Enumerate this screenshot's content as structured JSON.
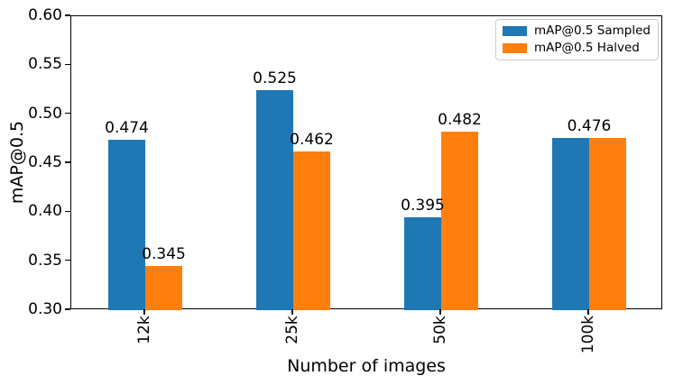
{
  "figure": {
    "background": "#ffffff",
    "spine_color": "#000000",
    "text_color": "#000000",
    "legend_border_color": "#cccccc"
  },
  "chart_data": {
    "type": "bar",
    "title": "",
    "xlabel": "Number of images",
    "ylabel": "mAP@0.5",
    "ylim": [
      0.3,
      0.6
    ],
    "yticks": [
      0.3,
      0.35,
      0.4,
      0.45,
      0.5,
      0.55,
      0.6
    ],
    "ytick_labels": [
      "0.30",
      "0.35",
      "0.40",
      "0.45",
      "0.50",
      "0.55",
      "0.60"
    ],
    "categories": [
      "12k",
      "25k",
      "50k",
      "100k"
    ],
    "xtick_rotation": 90,
    "grid": false,
    "legend_position": "upper right",
    "series": [
      {
        "name": "mAP@0.5 Sampled",
        "color": "#1f77b4",
        "values": [
          0.474,
          0.525,
          0.395,
          0.476
        ]
      },
      {
        "name": "mAP@0.5 Halved",
        "color": "#ff7f0e",
        "values": [
          0.345,
          0.462,
          0.482,
          0.476
        ]
      }
    ],
    "bar_labels": [
      {
        "group": 0,
        "anchor": "series0",
        "text": "0.474"
      },
      {
        "group": 0,
        "anchor": "series1",
        "text": "0.345"
      },
      {
        "group": 1,
        "anchor": "series0",
        "text": "0.525"
      },
      {
        "group": 1,
        "anchor": "series1",
        "text": "0.462"
      },
      {
        "group": 2,
        "anchor": "series0",
        "text": "0.395"
      },
      {
        "group": 2,
        "anchor": "series1",
        "text": "0.482"
      },
      {
        "group": 3,
        "anchor": "center",
        "text": "0.476"
      }
    ]
  }
}
